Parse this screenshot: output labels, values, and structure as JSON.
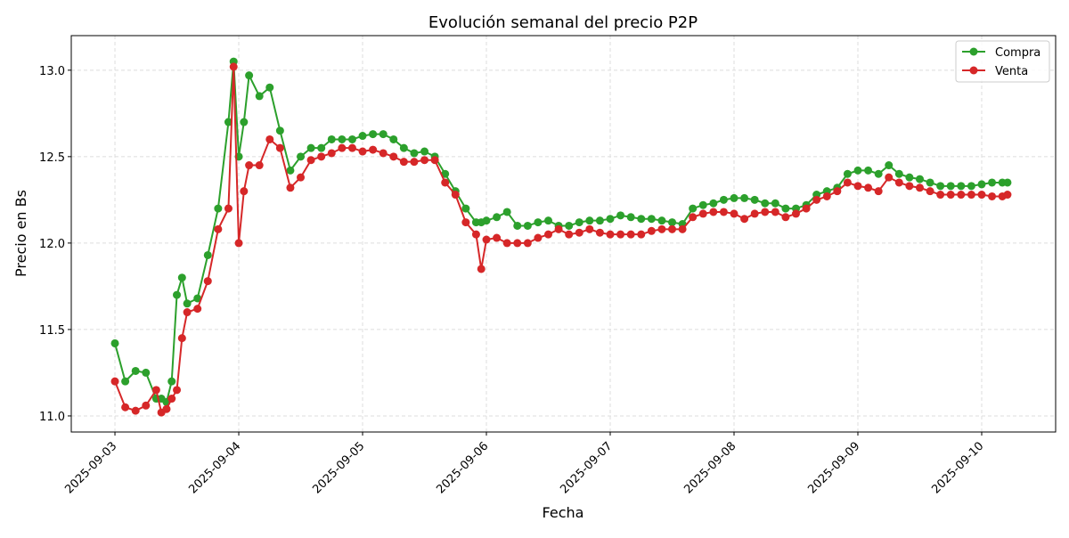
{
  "chart_data": {
    "type": "line",
    "title": "Evolución semanal del precio P2P",
    "xlabel": "Fecha",
    "ylabel": "Precio en Bs",
    "xlim": [
      "2025-09-02 15:32",
      "2025-09-10 14:20"
    ],
    "ylim": [
      10.907,
      13.2
    ],
    "grid": true,
    "legend": "top-right",
    "x_ticks": [
      "2025-09-03",
      "2025-09-04",
      "2025-09-05",
      "2025-09-06",
      "2025-09-07",
      "2025-09-08",
      "2025-09-09",
      "2025-09-10"
    ],
    "y_ticks": [
      "11.0",
      "11.5",
      "12.0",
      "12.5",
      "13.0"
    ],
    "x": [
      "2025-09-03 00:00",
      "2025-09-03 02:00",
      "2025-09-03 04:00",
      "2025-09-03 06:00",
      "2025-09-03 08:00",
      "2025-09-03 09:00",
      "2025-09-03 10:00",
      "2025-09-03 11:00",
      "2025-09-03 12:00",
      "2025-09-03 13:00",
      "2025-09-03 14:00",
      "2025-09-03 16:00",
      "2025-09-03 18:00",
      "2025-09-03 20:00",
      "2025-09-03 22:00",
      "2025-09-03 23:00",
      "2025-09-04 00:00",
      "2025-09-04 01:00",
      "2025-09-04 02:00",
      "2025-09-04 04:00",
      "2025-09-04 06:00",
      "2025-09-04 08:00",
      "2025-09-04 10:00",
      "2025-09-04 12:00",
      "2025-09-04 14:00",
      "2025-09-04 16:00",
      "2025-09-04 18:00",
      "2025-09-04 20:00",
      "2025-09-04 22:00",
      "2025-09-05 00:00",
      "2025-09-05 02:00",
      "2025-09-05 04:00",
      "2025-09-05 06:00",
      "2025-09-05 08:00",
      "2025-09-05 10:00",
      "2025-09-05 12:00",
      "2025-09-05 14:00",
      "2025-09-05 16:00",
      "2025-09-05 18:00",
      "2025-09-05 20:00",
      "2025-09-05 22:00",
      "2025-09-05 23:00",
      "2025-09-06 00:00",
      "2025-09-06 02:00",
      "2025-09-06 04:00",
      "2025-09-06 06:00",
      "2025-09-06 08:00",
      "2025-09-06 10:00",
      "2025-09-06 12:00",
      "2025-09-06 14:00",
      "2025-09-06 16:00",
      "2025-09-06 18:00",
      "2025-09-06 20:00",
      "2025-09-06 22:00",
      "2025-09-07 00:00",
      "2025-09-07 02:00",
      "2025-09-07 04:00",
      "2025-09-07 06:00",
      "2025-09-07 08:00",
      "2025-09-07 10:00",
      "2025-09-07 12:00",
      "2025-09-07 14:00",
      "2025-09-07 16:00",
      "2025-09-07 18:00",
      "2025-09-07 20:00",
      "2025-09-07 22:00",
      "2025-09-08 00:00",
      "2025-09-08 02:00",
      "2025-09-08 04:00",
      "2025-09-08 06:00",
      "2025-09-08 08:00",
      "2025-09-08 10:00",
      "2025-09-08 12:00",
      "2025-09-08 14:00",
      "2025-09-08 16:00",
      "2025-09-08 18:00",
      "2025-09-08 20:00",
      "2025-09-08 22:00",
      "2025-09-09 00:00",
      "2025-09-09 02:00",
      "2025-09-09 04:00",
      "2025-09-09 06:00",
      "2025-09-09 08:00",
      "2025-09-09 10:00",
      "2025-09-09 12:00",
      "2025-09-09 14:00",
      "2025-09-09 16:00",
      "2025-09-09 18:00",
      "2025-09-09 20:00",
      "2025-09-09 22:00",
      "2025-09-10 00:00",
      "2025-09-10 02:00",
      "2025-09-10 04:00",
      "2025-09-10 05:00"
    ],
    "series": [
      {
        "name": "Compra",
        "color": "#2ca02c",
        "values": [
          11.42,
          11.2,
          11.26,
          11.25,
          11.1,
          11.1,
          11.08,
          11.2,
          11.7,
          11.8,
          11.65,
          11.68,
          11.93,
          12.2,
          12.7,
          13.05,
          12.5,
          12.7,
          12.97,
          12.85,
          12.9,
          12.65,
          12.42,
          12.5,
          12.55,
          12.55,
          12.6,
          12.6,
          12.6,
          12.62,
          12.63,
          12.63,
          12.6,
          12.55,
          12.52,
          12.53,
          12.5,
          12.4,
          12.3,
          12.2,
          12.12,
          12.12,
          12.13,
          12.15,
          12.18,
          12.1,
          12.1,
          12.12,
          12.13,
          12.1,
          12.1,
          12.12,
          12.13,
          12.13,
          12.14,
          12.16,
          12.15,
          12.14,
          12.14,
          12.13,
          12.12,
          12.11,
          12.2,
          12.22,
          12.23,
          12.25,
          12.26,
          12.26,
          12.25,
          12.23,
          12.23,
          12.2,
          12.2,
          12.22,
          12.28,
          12.3,
          12.32,
          12.4,
          12.42,
          12.42,
          12.4,
          12.45,
          12.4,
          12.38,
          12.37,
          12.35,
          12.33,
          12.33,
          12.33,
          12.33,
          12.34,
          12.35,
          12.35,
          12.35
        ]
      },
      {
        "name": "Venta",
        "color": "#d62728",
        "values": [
          11.2,
          11.05,
          11.03,
          11.06,
          11.15,
          11.02,
          11.04,
          11.1,
          11.15,
          11.45,
          11.6,
          11.62,
          11.78,
          12.08,
          12.2,
          13.02,
          12.0,
          12.3,
          12.45,
          12.45,
          12.6,
          12.55,
          12.32,
          12.38,
          12.48,
          12.5,
          12.52,
          12.55,
          12.55,
          12.53,
          12.54,
          12.52,
          12.5,
          12.47,
          12.47,
          12.48,
          12.48,
          12.35,
          12.28,
          12.12,
          12.05,
          11.85,
          12.02,
          12.03,
          12.0,
          12.0,
          12.0,
          12.03,
          12.05,
          12.08,
          12.05,
          12.06,
          12.08,
          12.06,
          12.05,
          12.05,
          12.05,
          12.05,
          12.07,
          12.08,
          12.08,
          12.08,
          12.15,
          12.17,
          12.18,
          12.18,
          12.17,
          12.14,
          12.17,
          12.18,
          12.18,
          12.15,
          12.17,
          12.2,
          12.25,
          12.27,
          12.3,
          12.35,
          12.33,
          12.32,
          12.3,
          12.38,
          12.35,
          12.33,
          12.32,
          12.3,
          12.28,
          12.28,
          12.28,
          12.28,
          12.28,
          12.27,
          12.27,
          12.28
        ]
      }
    ]
  }
}
